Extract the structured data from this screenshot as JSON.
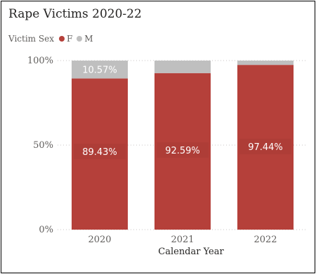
{
  "chart_data": {
    "type": "bar",
    "stacked": "percent",
    "title": "Rape Victims 2020-22",
    "xlabel": "Calendar Year",
    "ylabel": "",
    "ylim": [
      0,
      100
    ],
    "y_ticks": [
      "0%",
      "50%",
      "100%"
    ],
    "categories": [
      "2020",
      "2021",
      "2022"
    ],
    "legend_title": "Victim Sex",
    "legend_position": "top-left",
    "grid": "dotted horizontal",
    "series": [
      {
        "name": "F",
        "color": "#b5403a",
        "values": [
          89.43,
          92.59,
          97.44
        ],
        "labels": [
          "89.43%",
          "92.59%",
          "97.44%"
        ]
      },
      {
        "name": "M",
        "color": "#bfbfbf",
        "values": [
          10.57,
          7.41,
          2.56
        ],
        "labels": [
          "10.57%",
          "",
          ""
        ]
      }
    ]
  }
}
